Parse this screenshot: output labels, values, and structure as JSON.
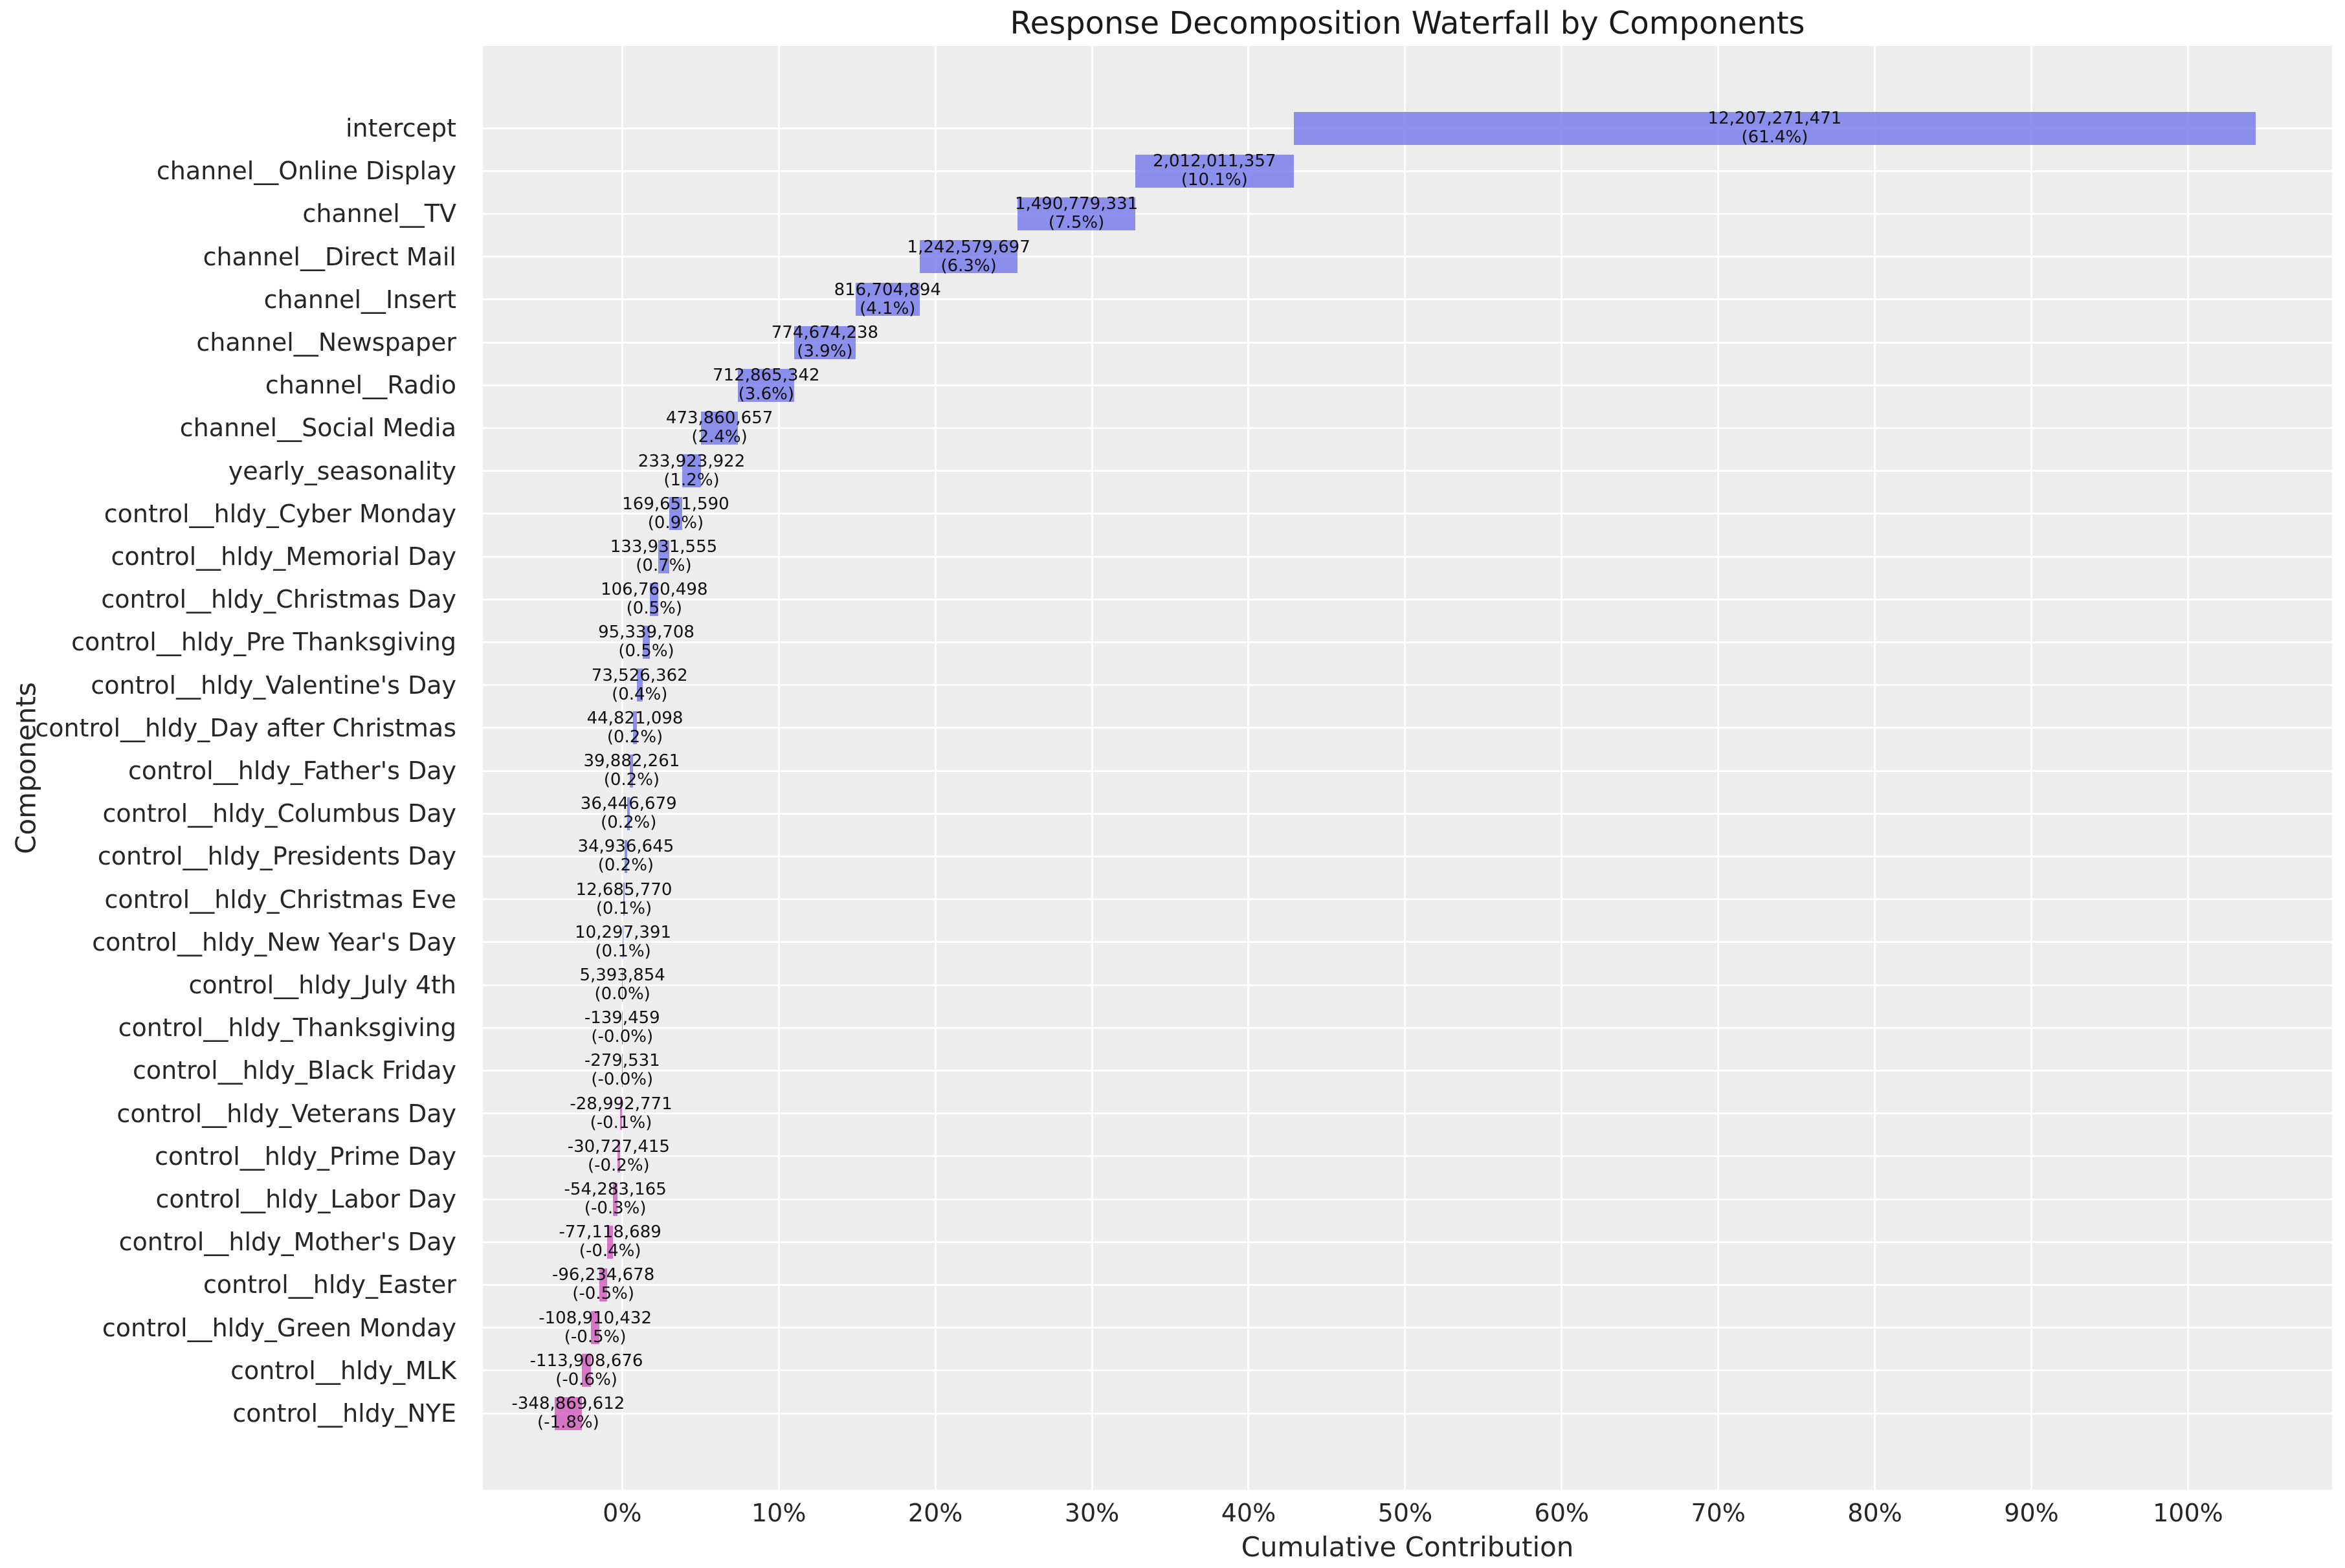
{
  "chart_data": {
    "type": "bar",
    "subtype": "horizontal-waterfall",
    "title": "Response Decomposition Waterfall by Components",
    "xlabel": "Cumulative Contribution",
    "ylabel": "Components",
    "legend": "none",
    "grid": true,
    "xlim_pct": [
      -8.9,
      109.2
    ],
    "x_tick_labels": [
      "0%",
      "10%",
      "20%",
      "30%",
      "40%",
      "50%",
      "60%",
      "70%",
      "80%",
      "90%",
      "100%"
    ],
    "x_tick_values": [
      0,
      10,
      20,
      30,
      40,
      50,
      60,
      70,
      80,
      90,
      100
    ],
    "colors": {
      "positive_bar": "rgba(114,118,232,0.8)",
      "positive_bar_hex": "#8b8ee9",
      "negative_bar": "rgba(208,86,186,0.8)",
      "negative_bar_hex": "#d674c4",
      "plot_background": "#ededed",
      "gridline": "#ffffff",
      "figure_background": "#ffffff"
    },
    "categories": [
      "intercept",
      "channel__Online Display",
      "channel__TV",
      "channel__Direct Mail",
      "channel__Insert",
      "channel__Newspaper",
      "channel__Radio",
      "channel__Social Media",
      "yearly_seasonality",
      "control__hldy_Cyber Monday",
      "control__hldy_Memorial Day",
      "control__hldy_Christmas Day",
      "control__hldy_Pre Thanksgiving",
      "control__hldy_Valentine's Day",
      "control__hldy_Day after Christmas",
      "control__hldy_Father's Day",
      "control__hldy_Columbus Day",
      "control__hldy_Presidents Day",
      "control__hldy_Christmas Eve",
      "control__hldy_New Year's Day",
      "control__hldy_July 4th",
      "control__hldy_Thanksgiving",
      "control__hldy_Black Friday",
      "control__hldy_Veterans Day",
      "control__hldy_Prime Day",
      "control__hldy_Labor Day",
      "control__hldy_Mother's Day",
      "control__hldy_Easter",
      "control__hldy_Green Monday",
      "control__hldy_MLK",
      "control__hldy_NYE"
    ],
    "items": [
      {
        "label": "intercept",
        "value": 12207271471,
        "value_text": "12,207,271,471",
        "pct_text": "(61.4%)"
      },
      {
        "label": "channel__Online Display",
        "value": 2012011357,
        "value_text": "2,012,011,357",
        "pct_text": "(10.1%)"
      },
      {
        "label": "channel__TV",
        "value": 1490779331,
        "value_text": "1,490,779,331",
        "pct_text": "(7.5%)"
      },
      {
        "label": "channel__Direct Mail",
        "value": 1242579697,
        "value_text": "1,242,579,697",
        "pct_text": "(6.3%)"
      },
      {
        "label": "channel__Insert",
        "value": 816704894,
        "value_text": "816,704,894",
        "pct_text": "(4.1%)"
      },
      {
        "label": "channel__Newspaper",
        "value": 774674238,
        "value_text": "774,674,238",
        "pct_text": "(3.9%)"
      },
      {
        "label": "channel__Radio",
        "value": 712865342,
        "value_text": "712,865,342",
        "pct_text": "(3.6%)"
      },
      {
        "label": "channel__Social Media",
        "value": 473860657,
        "value_text": "473,860,657",
        "pct_text": "(2.4%)"
      },
      {
        "label": "yearly_seasonality",
        "value": 233923922,
        "value_text": "233,923,922",
        "pct_text": "(1.2%)"
      },
      {
        "label": "control__hldy_Cyber Monday",
        "value": 169651590,
        "value_text": "169,651,590",
        "pct_text": "(0.9%)"
      },
      {
        "label": "control__hldy_Memorial Day",
        "value": 133931555,
        "value_text": "133,931,555",
        "pct_text": "(0.7%)"
      },
      {
        "label": "control__hldy_Christmas Day",
        "value": 106760498,
        "value_text": "106,760,498",
        "pct_text": "(0.5%)"
      },
      {
        "label": "control__hldy_Pre Thanksgiving",
        "value": 95339708,
        "value_text": "95,339,708",
        "pct_text": "(0.5%)"
      },
      {
        "label": "control__hldy_Valentine's Day",
        "value": 73526362,
        "value_text": "73,526,362",
        "pct_text": "(0.4%)"
      },
      {
        "label": "control__hldy_Day after Christmas",
        "value": 44821098,
        "value_text": "44,821,098",
        "pct_text": "(0.2%)"
      },
      {
        "label": "control__hldy_Father's Day",
        "value": 39882261,
        "value_text": "39,882,261",
        "pct_text": "(0.2%)"
      },
      {
        "label": "control__hldy_Columbus Day",
        "value": 36446679,
        "value_text": "36,446,679",
        "pct_text": "(0.2%)"
      },
      {
        "label": "control__hldy_Presidents Day",
        "value": 34936645,
        "value_text": "34,936,645",
        "pct_text": "(0.2%)"
      },
      {
        "label": "control__hldy_Christmas Eve",
        "value": 12685770,
        "value_text": "12,685,770",
        "pct_text": "(0.1%)"
      },
      {
        "label": "control__hldy_New Year's Day",
        "value": 10297391,
        "value_text": "10,297,391",
        "pct_text": "(0.1%)"
      },
      {
        "label": "control__hldy_July 4th",
        "value": 5393854,
        "value_text": "5,393,854",
        "pct_text": "(0.0%)"
      },
      {
        "label": "control__hldy_Thanksgiving",
        "value": -139459,
        "value_text": "-139,459",
        "pct_text": "(-0.0%)"
      },
      {
        "label": "control__hldy_Black Friday",
        "value": -279531,
        "value_text": "-279,531",
        "pct_text": "(-0.0%)"
      },
      {
        "label": "control__hldy_Veterans Day",
        "value": -28992771,
        "value_text": "-28,992,771",
        "pct_text": "(-0.1%)"
      },
      {
        "label": "control__hldy_Prime Day",
        "value": -30727415,
        "value_text": "-30,727,415",
        "pct_text": "(-0.2%)"
      },
      {
        "label": "control__hldy_Labor Day",
        "value": -54283165,
        "value_text": "-54,283,165",
        "pct_text": "(-0.3%)"
      },
      {
        "label": "control__hldy_Mother's Day",
        "value": -77118689,
        "value_text": "-77,118,689",
        "pct_text": "(-0.4%)"
      },
      {
        "label": "control__hldy_Easter",
        "value": -96234678,
        "value_text": "-96,234,678",
        "pct_text": "(-0.5%)"
      },
      {
        "label": "control__hldy_Green Monday",
        "value": -108910432,
        "value_text": "-108,910,432",
        "pct_text": "(-0.5%)"
      },
      {
        "label": "control__hldy_MLK",
        "value": -113908676,
        "value_text": "-113,908,676",
        "pct_text": "(-0.6%)"
      },
      {
        "label": "control__hldy_NYE",
        "value": -348869612,
        "value_text": "-348,869,612",
        "pct_text": "(-1.8%)"
      }
    ]
  }
}
